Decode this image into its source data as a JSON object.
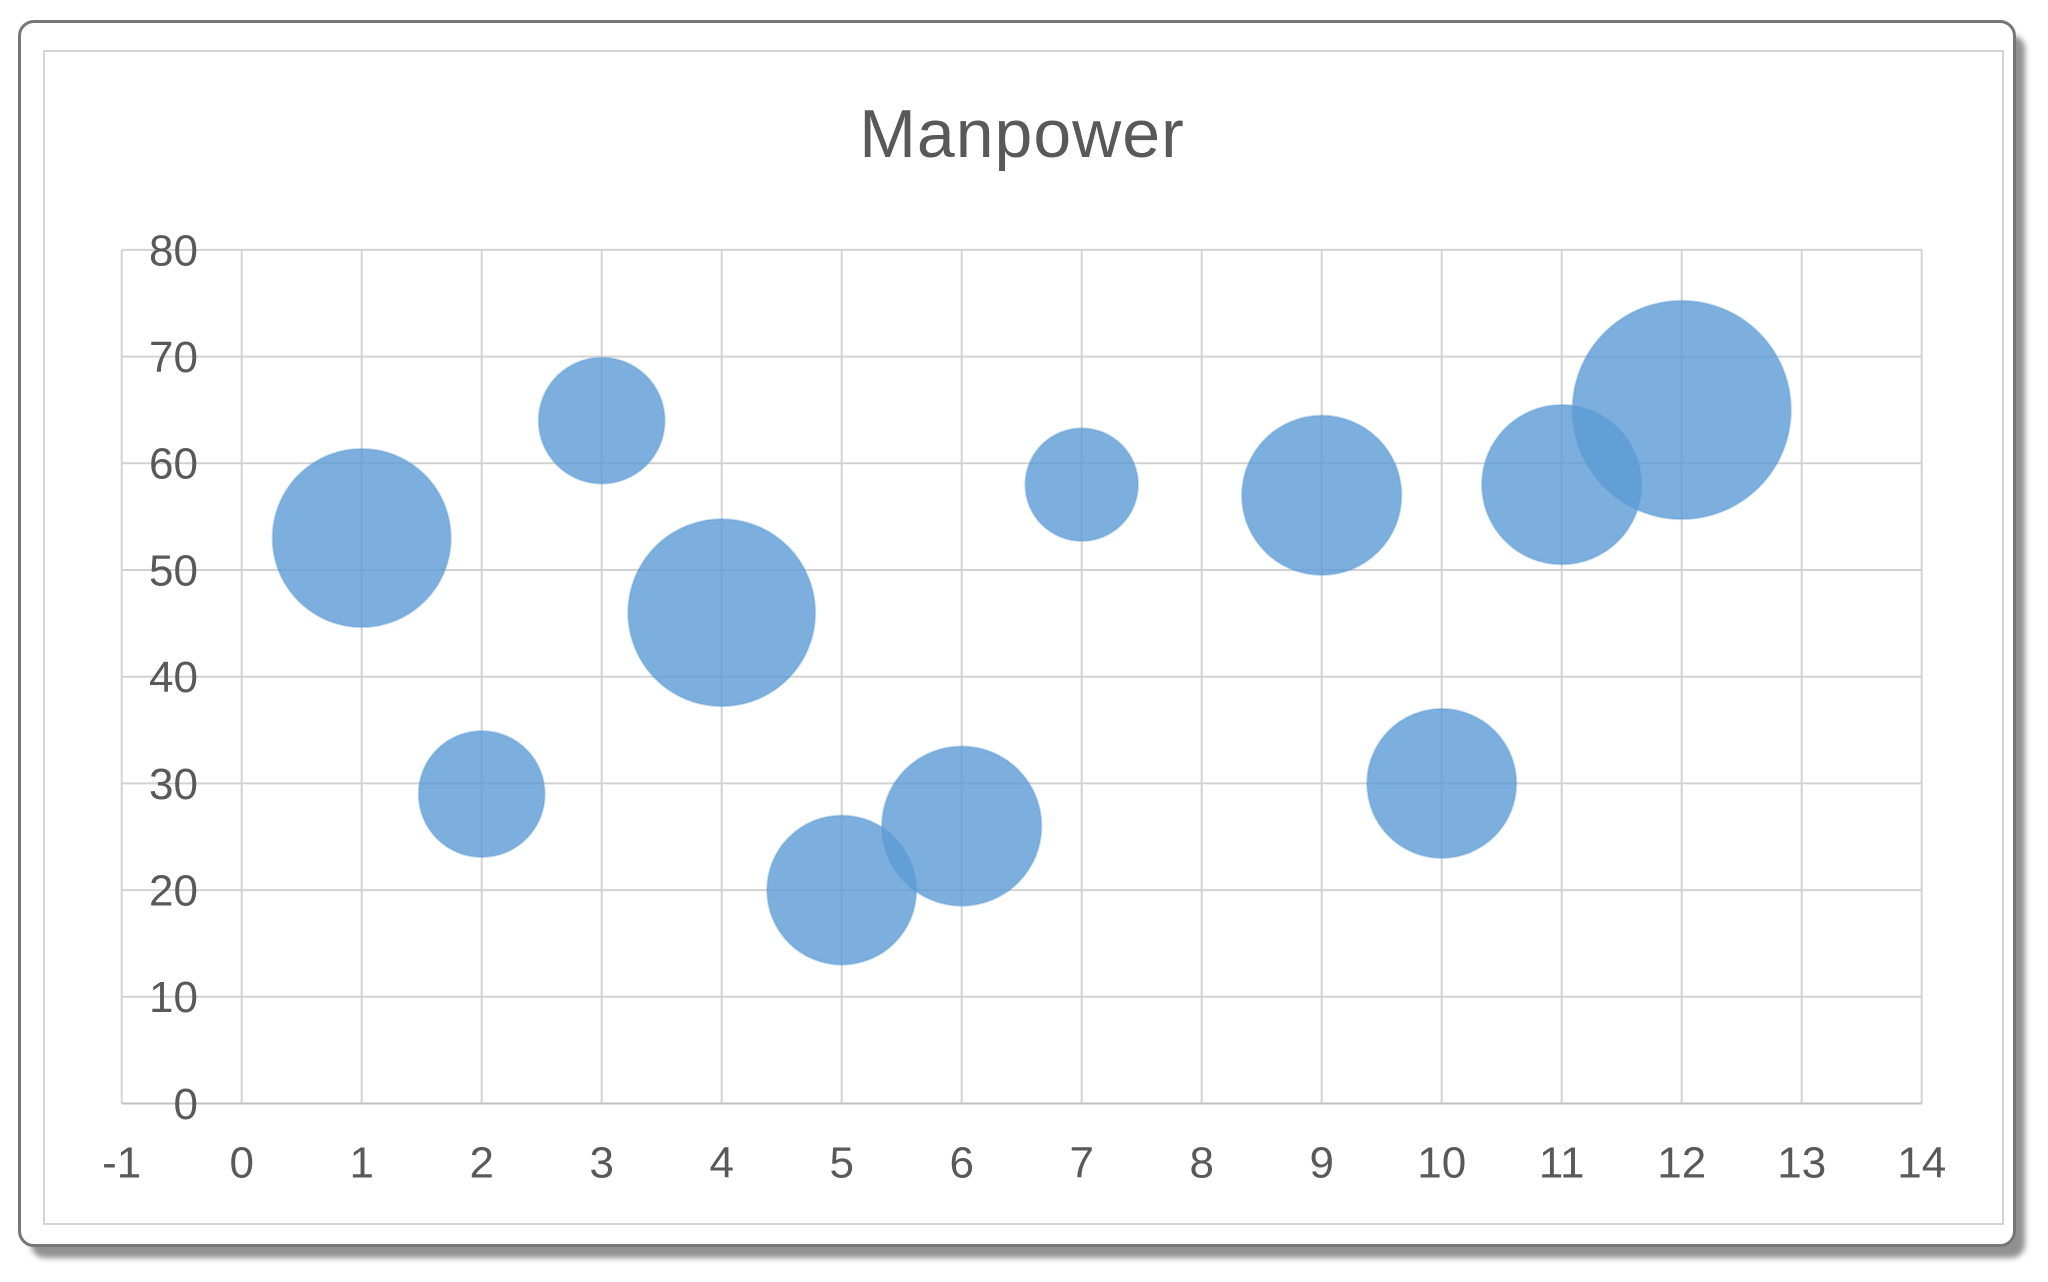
{
  "chart_data": {
    "type": "scatter",
    "subtype": "bubble",
    "title": "Manpower",
    "xlabel": "",
    "ylabel": "",
    "xlim": [
      -1,
      14
    ],
    "ylim": [
      0,
      80
    ],
    "x_ticks": [
      -1,
      0,
      1,
      2,
      3,
      4,
      5,
      6,
      7,
      8,
      9,
      10,
      11,
      12,
      13,
      14
    ],
    "y_ticks": [
      0,
      10,
      20,
      30,
      40,
      50,
      60,
      70,
      80
    ],
    "grid": true,
    "legend_position": "none",
    "series": [
      {
        "name": "Manpower",
        "points": [
          {
            "x": 1,
            "y": 53,
            "size": 10
          },
          {
            "x": 2,
            "y": 29,
            "size": 5
          },
          {
            "x": 3,
            "y": 64,
            "size": 5
          },
          {
            "x": 4,
            "y": 46,
            "size": 11
          },
          {
            "x": 5,
            "y": 20,
            "size": 7
          },
          {
            "x": 6,
            "y": 26,
            "size": 8
          },
          {
            "x": 7,
            "y": 58,
            "size": 4
          },
          {
            "x": 9,
            "y": 57,
            "size": 8
          },
          {
            "x": 10,
            "y": 30,
            "size": 7
          },
          {
            "x": 11,
            "y": 58,
            "size": 8
          },
          {
            "x": 12,
            "y": 65,
            "size": 15
          }
        ]
      }
    ]
  },
  "colors": {
    "bubble_fill": "#5B9BD5",
    "bubble_fill_opacity": "0.8",
    "bubble_stroke_opacity": "0.35",
    "gridline": "#D2D2D2",
    "axis_line": "#C0C0C0",
    "tick_text": "#595959",
    "title_text": "#595959",
    "frame_border": "#777777",
    "chart_area_border": "#D4D4D4",
    "frame_shadow": "#8E8E8E",
    "background": "#FFFFFF"
  }
}
